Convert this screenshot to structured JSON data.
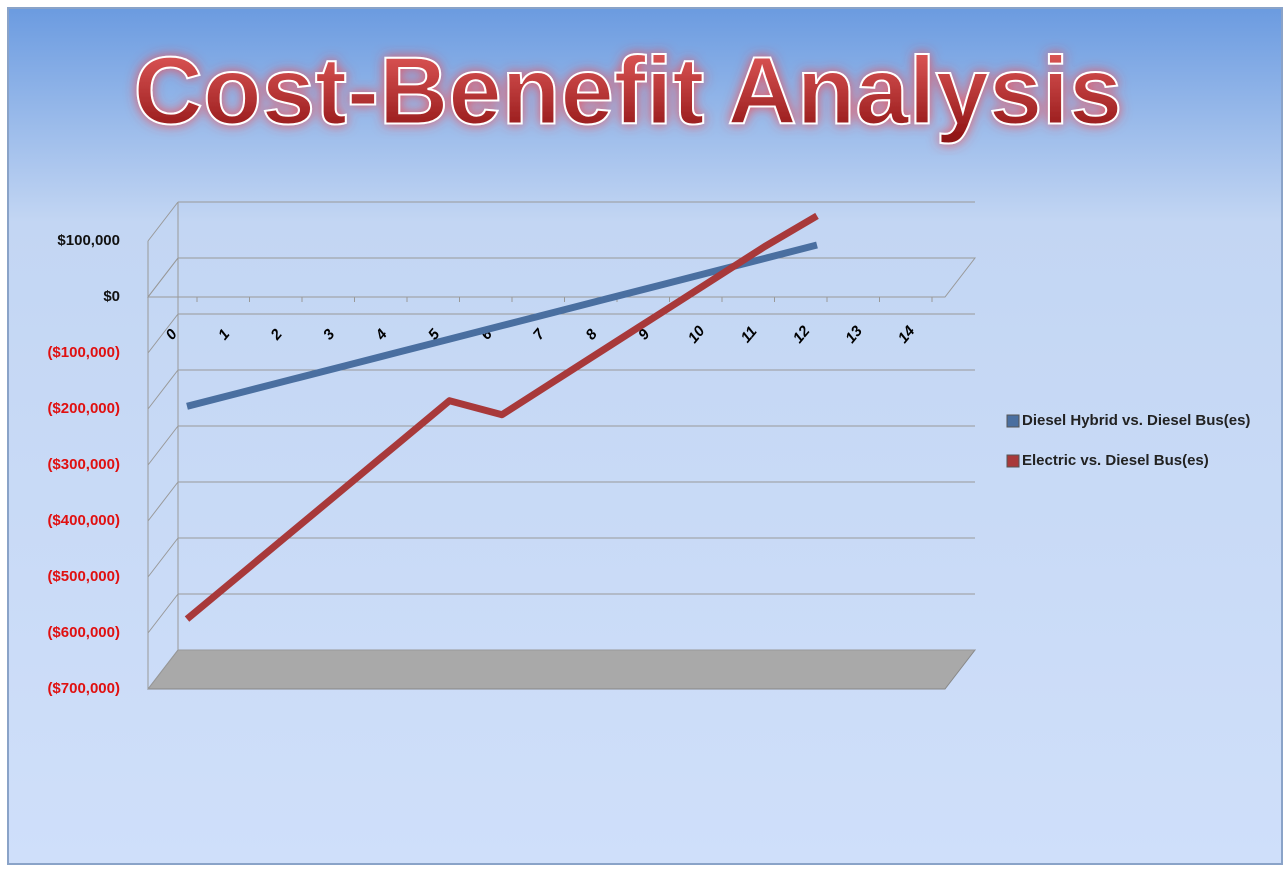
{
  "chart_data": {
    "type": "line",
    "title": "Cost-Benefit Analysis",
    "categories": [
      "0",
      "1",
      "2",
      "3",
      "4",
      "5",
      "6",
      "7",
      "8",
      "9",
      "10",
      "11",
      "12",
      "13",
      "14"
    ],
    "series": [
      {
        "name": "Diesel Hybrid vs. Diesel Bus(es)",
        "color": "#4a6fa0",
        "values": [
          -230000,
          -206000,
          -182000,
          -158000,
          -134000,
          -110000,
          -86000,
          -62000,
          -38000,
          -14000,
          10000,
          34000,
          58000,
          null,
          null
        ]
      },
      {
        "name": "Electric vs. Diesel Bus(es)",
        "color": "#a8393a",
        "values": [
          -610000,
          -532000,
          -454000,
          -376000,
          -298000,
          -220000,
          -245000,
          -185000,
          -125000,
          -65000,
          -5000,
          55000,
          110000,
          null,
          null
        ]
      }
    ],
    "ylim": [
      -700000,
      100000
    ],
    "yticks": [
      {
        "value": 100000,
        "label": "$100,000"
      },
      {
        "value": 0,
        "label": "$0"
      },
      {
        "value": -100000,
        "label": "($100,000)"
      },
      {
        "value": -200000,
        "label": "($200,000)"
      },
      {
        "value": -300000,
        "label": "($300,000)"
      },
      {
        "value": -400000,
        "label": "($400,000)"
      },
      {
        "value": -500000,
        "label": "($500,000)"
      },
      {
        "value": -600000,
        "label": "($600,000)"
      },
      {
        "value": -700000,
        "label": "($700,000)"
      }
    ],
    "negative_tick_color": "#e01010",
    "grid": true,
    "legend": "right"
  }
}
